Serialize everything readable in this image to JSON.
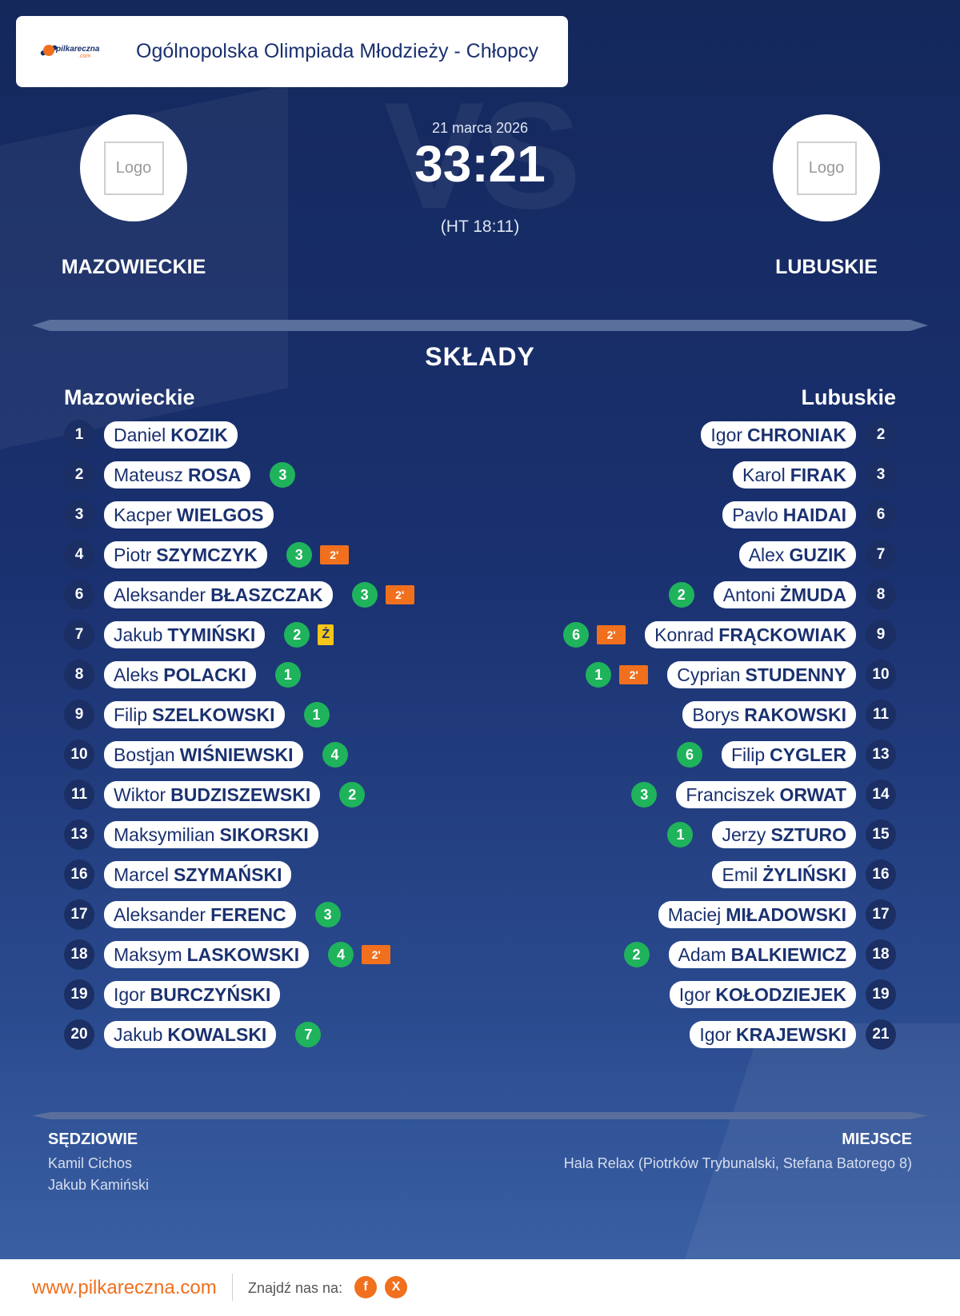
{
  "header": {
    "league": "Ogólnopolska Olimpiada Młodzieży - Chłopcy",
    "brand_text": "pilkareczna",
    "brand_sub": ".com"
  },
  "match": {
    "date": "21 marca 2026",
    "score": "33:21",
    "halftime": "(HT 18:11)",
    "watermark": "VS",
    "home": {
      "name": "MAZOWIECKIE",
      "logo": "Logo"
    },
    "away": {
      "name": "LUBUSKIE",
      "logo": "Logo"
    }
  },
  "lineups": {
    "title": "SKŁADY",
    "home_label": "Mazowieckie",
    "away_label": "Lubuskie",
    "home": [
      {
        "num": "1",
        "first": "Daniel",
        "last": "KOZIK",
        "goals": "",
        "susp": "",
        "card": ""
      },
      {
        "num": "2",
        "first": "Mateusz",
        "last": "ROSA",
        "goals": "3",
        "susp": "",
        "card": ""
      },
      {
        "num": "3",
        "first": "Kacper",
        "last": "WIELGOS",
        "goals": "",
        "susp": "",
        "card": ""
      },
      {
        "num": "4",
        "first": "Piotr",
        "last": "SZYMCZYK",
        "goals": "3",
        "susp": "2'",
        "card": ""
      },
      {
        "num": "6",
        "first": "Aleksander",
        "last": "BŁASZCZAK",
        "goals": "3",
        "susp": "2'",
        "card": ""
      },
      {
        "num": "7",
        "first": "Jakub",
        "last": "TYMIŃSKI",
        "goals": "2",
        "susp": "",
        "card": "Ż"
      },
      {
        "num": "8",
        "first": "Aleks",
        "last": "POLACKI",
        "goals": "1",
        "susp": "",
        "card": ""
      },
      {
        "num": "9",
        "first": "Filip",
        "last": "SZELKOWSKI",
        "goals": "1",
        "susp": "",
        "card": ""
      },
      {
        "num": "10",
        "first": "Bostjan",
        "last": "WIŚNIEWSKI",
        "goals": "4",
        "susp": "",
        "card": ""
      },
      {
        "num": "11",
        "first": "Wiktor",
        "last": "BUDZISZEWSKI",
        "goals": "2",
        "susp": "",
        "card": ""
      },
      {
        "num": "13",
        "first": "Maksymilian",
        "last": "SIKORSKI",
        "goals": "",
        "susp": "",
        "card": ""
      },
      {
        "num": "16",
        "first": "Marcel",
        "last": "SZYMAŃSKI",
        "goals": "",
        "susp": "",
        "card": ""
      },
      {
        "num": "17",
        "first": "Aleksander",
        "last": "FERENC",
        "goals": "3",
        "susp": "",
        "card": ""
      },
      {
        "num": "18",
        "first": "Maksym",
        "last": "LASKOWSKI",
        "goals": "4",
        "susp": "2'",
        "card": ""
      },
      {
        "num": "19",
        "first": "Igor",
        "last": "BURCZYŃSKI",
        "goals": "",
        "susp": "",
        "card": ""
      },
      {
        "num": "20",
        "first": "Jakub",
        "last": "KOWALSKI",
        "goals": "7",
        "susp": "",
        "card": ""
      }
    ],
    "away": [
      {
        "num": "2",
        "first": "Igor",
        "last": "CHRONIAK",
        "goals": "",
        "susp": ""
      },
      {
        "num": "3",
        "first": "Karol",
        "last": "FIRAK",
        "goals": "",
        "susp": ""
      },
      {
        "num": "6",
        "first": "Pavlo",
        "last": "HAIDAI",
        "goals": "",
        "susp": ""
      },
      {
        "num": "7",
        "first": "Alex",
        "last": "GUZIK",
        "goals": "",
        "susp": ""
      },
      {
        "num": "8",
        "first": "Antoni",
        "last": "ŻMUDA",
        "goals": "2",
        "susp": ""
      },
      {
        "num": "9",
        "first": "Konrad",
        "last": "FRĄCKOWIAK",
        "goals": "6",
        "susp": "2'"
      },
      {
        "num": "10",
        "first": "Cyprian",
        "last": "STUDENNY",
        "goals": "1",
        "susp": "2'"
      },
      {
        "num": "11",
        "first": "Borys",
        "last": "RAKOWSKI",
        "goals": "",
        "susp": ""
      },
      {
        "num": "13",
        "first": "Filip",
        "last": "CYGLER",
        "goals": "6",
        "susp": ""
      },
      {
        "num": "14",
        "first": "Franciszek",
        "last": "ORWAT",
        "goals": "3",
        "susp": ""
      },
      {
        "num": "15",
        "first": "Jerzy",
        "last": "SZTURO",
        "goals": "1",
        "susp": ""
      },
      {
        "num": "16",
        "first": "Emil",
        "last": "ŻYLIŃSKI",
        "goals": "",
        "susp": ""
      },
      {
        "num": "17",
        "first": "Maciej",
        "last": "MIŁADOWSKI",
        "goals": "",
        "susp": ""
      },
      {
        "num": "18",
        "first": "Adam",
        "last": "BALKIEWICZ",
        "goals": "2",
        "susp": ""
      },
      {
        "num": "19",
        "first": "Igor",
        "last": "KOŁODZIEJEK",
        "goals": "",
        "susp": ""
      },
      {
        "num": "21",
        "first": "Igor",
        "last": "KRAJEWSKI",
        "goals": "",
        "susp": ""
      }
    ]
  },
  "officials": {
    "label": "SĘDZIOWIE",
    "names": [
      "Kamil Cichos",
      "Jakub Kamiński"
    ]
  },
  "venue": {
    "label": "MIEJSCE",
    "text": "Hala Relax (Piotrków Trybunalski, Stefana Batorego 8)"
  },
  "footer": {
    "url": "www.pilkareczna.com",
    "find_us": "Znajdź nas na:",
    "facebook": "f",
    "x": "X"
  },
  "colors": {
    "navy": "#1a3170",
    "goal_green": "#1fb35c",
    "suspension_orange": "#f0701e",
    "yellow_card": "#f5c518"
  }
}
